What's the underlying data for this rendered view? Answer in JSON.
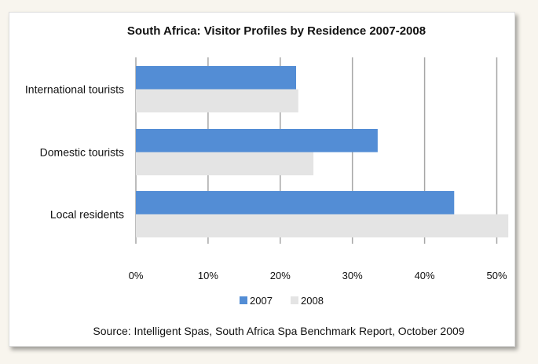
{
  "chart_data": {
    "type": "bar",
    "orientation": "horizontal",
    "title": "South Africa:  Visitor Profiles by Residence 2007-2008",
    "categories": [
      "International tourists",
      "Domestic tourists",
      "Local residents"
    ],
    "series": [
      {
        "name": "2007",
        "color": "#538dd5",
        "values": [
          22.2,
          33.5,
          44.1
        ]
      },
      {
        "name": "2008",
        "color": "#e4e4e4",
        "values": [
          22.5,
          24.6,
          51.6
        ]
      }
    ],
    "xticks": [
      "0%",
      "10%",
      "20%",
      "30%",
      "40%",
      "50%"
    ],
    "xlim": [
      0,
      51.6
    ],
    "grid": true,
    "legend_position": "bottom",
    "source": "Source: Intelligent Spas, South Africa Spa Benchmark Report, October 2009"
  }
}
